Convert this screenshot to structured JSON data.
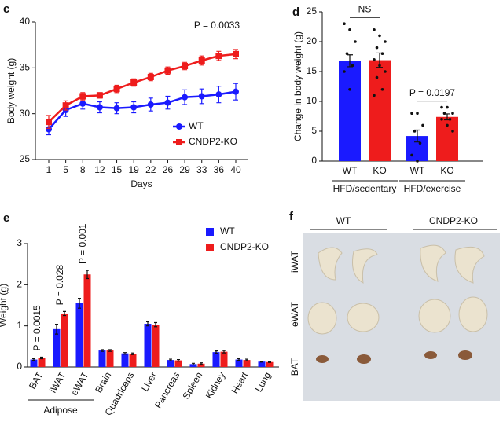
{
  "chart_data": [
    {
      "type": "line",
      "panel": "c",
      "x_label": "Days",
      "y_label": "Body weight (g)",
      "categories": [
        "1",
        "5",
        "8",
        "12",
        "15",
        "19",
        "22",
        "26",
        "29",
        "33",
        "36",
        "40"
      ],
      "series": [
        {
          "name": "WT",
          "color": "#1a1aff",
          "marker": "circle",
          "values": [
            28.3,
            30.4,
            31.1,
            30.7,
            30.6,
            30.7,
            31.0,
            31.2,
            31.8,
            31.9,
            32.1,
            32.4
          ],
          "errors": [
            0.6,
            0.7,
            0.6,
            0.6,
            0.6,
            0.6,
            0.7,
            0.7,
            0.8,
            0.8,
            0.9,
            0.9
          ]
        },
        {
          "name": "CNDP2-KO",
          "color": "#ee1c1c",
          "marker": "square",
          "values": [
            29.1,
            30.9,
            31.9,
            32.0,
            32.7,
            33.4,
            34.0,
            34.7,
            35.2,
            35.8,
            36.3,
            36.5
          ],
          "errors": [
            0.7,
            0.5,
            0.4,
            0.3,
            0.4,
            0.4,
            0.4,
            0.4,
            0.4,
            0.5,
            0.5,
            0.5
          ]
        }
      ],
      "ylim": [
        25,
        40
      ],
      "yticks": [
        25,
        30,
        35,
        40
      ],
      "legend": "lower right",
      "annotations": [
        "P = 0.0033"
      ]
    },
    {
      "type": "bar",
      "panel": "d",
      "y_label": "Change in body weight (g)",
      "categories": [
        "HFD/sedentary",
        "HFD/exercise"
      ],
      "series": [
        {
          "name": "WT",
          "color": "#1a1aff",
          "values": [
            16.8,
            4.2
          ],
          "errors": [
            1.0,
            1.0
          ],
          "points": [
            [
              23,
              22,
              20,
              18,
              16,
              15,
              12
            ],
            [
              8,
              8,
              6,
              5,
              3,
              1,
              0
            ]
          ]
        },
        {
          "name": "KO",
          "color": "#ee1c1c",
          "values": [
            16.9,
            7.4
          ],
          "errors": [
            1.2,
            0.5
          ],
          "points": [
            [
              22,
              21,
              20,
              19,
              18,
              17,
              16,
              15,
              14,
              12,
              11
            ],
            [
              9,
              9,
              8,
              8,
              7,
              7,
              6,
              5
            ]
          ]
        }
      ],
      "ylim": [
        0,
        25
      ],
      "yticks": [
        0,
        5,
        10,
        15,
        20,
        25
      ],
      "annotations": [
        "NS",
        "P = 0.0197"
      ]
    },
    {
      "type": "grouped-bar",
      "panel": "e",
      "y_label": "Weight (g)",
      "categories": [
        "BAT",
        "iWAT",
        "eWAT",
        "Brain",
        "Quadriceps",
        "Liver",
        "Pancreas",
        "Spleen",
        "Kidney",
        "Heart",
        "Lung"
      ],
      "series": [
        {
          "name": "WT",
          "color": "#1a1aff",
          "values": [
            0.18,
            0.92,
            1.55,
            0.4,
            0.33,
            1.05,
            0.17,
            0.07,
            0.36,
            0.18,
            0.13
          ],
          "errors": [
            0.02,
            0.12,
            0.12,
            0.02,
            0.02,
            0.05,
            0.02,
            0.02,
            0.03,
            0.02,
            0.01
          ]
        },
        {
          "name": "CNDP2-KO",
          "color": "#ee1c1c",
          "values": [
            0.22,
            1.3,
            2.25,
            0.4,
            0.32,
            1.03,
            0.16,
            0.08,
            0.37,
            0.17,
            0.12
          ],
          "errors": [
            0.02,
            0.05,
            0.1,
            0.02,
            0.02,
            0.05,
            0.02,
            0.02,
            0.03,
            0.02,
            0.01
          ]
        }
      ],
      "ylim": [
        0,
        3
      ],
      "yticks": [
        0,
        1,
        2,
        3
      ],
      "legend": "upper right",
      "annotations": [
        "P = 0.0015",
        "P = 0.028",
        "P = 0.001"
      ],
      "group_label": "Adipose"
    }
  ],
  "photo": {
    "panel": "f",
    "columns": [
      "WT",
      "CNDP2-KO"
    ],
    "rows": [
      "iWAT",
      "eWAT",
      "BAT"
    ]
  }
}
